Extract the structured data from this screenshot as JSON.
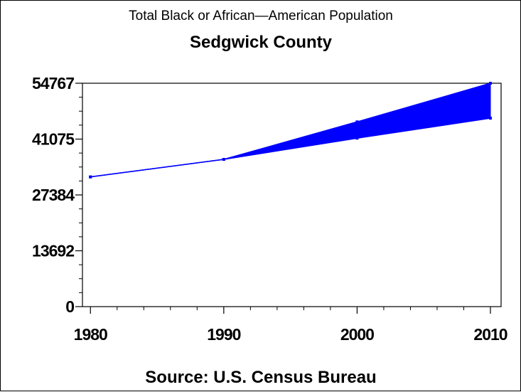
{
  "chart_data": {
    "type": "area",
    "title": "Total Black or African—American Population",
    "subtitle": "Sedgwick County",
    "footnote": "Source: U.S. Census Bureau",
    "x": [
      1980,
      1990,
      2000,
      2010
    ],
    "x_ticks": [
      "1980",
      "1990",
      "2000",
      "2010"
    ],
    "y_ticks": [
      "0",
      "13692",
      "27384",
      "41075",
      "54767"
    ],
    "ylim": [
      0,
      54767
    ],
    "xlim": [
      1979.4,
      2010.8
    ],
    "series": [
      {
        "values": [
          31800,
          36100,
          45300,
          54767
        ]
      },
      {
        "values": [
          31800,
          36100,
          41300,
          46200
        ]
      }
    ],
    "color": "#0000ff",
    "grid": false,
    "legend": "none"
  }
}
